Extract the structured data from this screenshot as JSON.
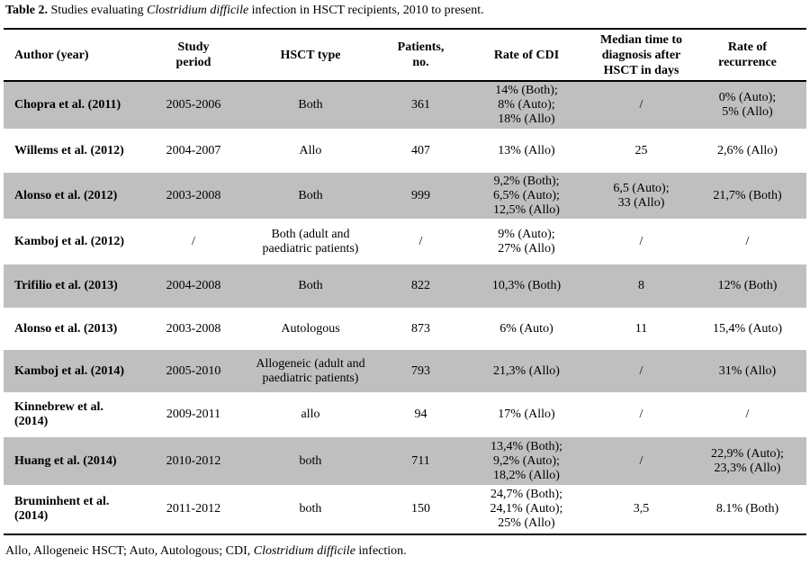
{
  "caption": {
    "label": "Table 2.",
    "text_before": "Studies evaluating",
    "italic": "Clostridium difficile",
    "text_after": "infection in HSCT recipients, 2010 to present."
  },
  "table": {
    "header": [
      [
        "Author (year)"
      ],
      [
        "Study",
        "period"
      ],
      [
        "HSCT type"
      ],
      [
        "Patients,",
        "no."
      ],
      [
        "Rate of CDI"
      ],
      [
        "Median time to",
        "diagnosis after",
        "HSCT in days"
      ],
      [
        "Rate of",
        "recurrence"
      ]
    ],
    "rows": [
      [
        "Chopra et al. (2011)",
        "2005-2006",
        "Both",
        "361",
        [
          "14% (Both);",
          "8% (Auto);",
          "18% (Allo)"
        ],
        "/",
        [
          "0% (Auto);",
          "5% (Allo)"
        ]
      ],
      [
        "Willems et al. (2012)",
        "2004-2007",
        "Allo",
        "407",
        "13% (Allo)",
        "25",
        "2,6% (Allo)"
      ],
      [
        "Alonso et al. (2012)",
        "2003-2008",
        "Both",
        "999",
        [
          "9,2% (Both);",
          "6,5% (Auto);",
          "12,5% (Allo)"
        ],
        [
          "6,5 (Auto);",
          "33 (Allo)"
        ],
        "21,7% (Both)"
      ],
      [
        "Kamboj et al. (2012)",
        "/",
        [
          "Both (adult and",
          "paediatric patients)"
        ],
        "/",
        [
          "9% (Auto);",
          "27% (Allo)"
        ],
        "/",
        "/"
      ],
      [
        "Trifilio et al. (2013)",
        "2004-2008",
        "Both",
        "822",
        "10,3% (Both)",
        "8",
        "12% (Both)"
      ],
      [
        "Alonso et al. (2013)",
        "2003-2008",
        "Autologous",
        "873",
        "6% (Auto)",
        "11",
        "15,4% (Auto)"
      ],
      [
        "Kamboj et al. (2014)",
        "2005-2010",
        [
          "Allogeneic (adult and",
          "paediatric patients)"
        ],
        "793",
        "21,3% (Allo)",
        "/",
        "31% (Allo)"
      ],
      [
        [
          "Kinnebrew et al.",
          "(2014)"
        ],
        "2009-2011",
        "allo",
        "94",
        "17% (Allo)",
        "/",
        "/"
      ],
      [
        "Huang et al. (2014)",
        "2010-2012",
        "both",
        "711",
        [
          "13,4% (Both);",
          "9,2% (Auto);",
          "18,2% (Allo)"
        ],
        "/",
        [
          "22,9% (Auto);",
          "23,3% (Allo)"
        ]
      ],
      [
        [
          "Bruminhent et al.",
          "(2014)"
        ],
        "2011-2012",
        "both",
        "150",
        [
          "24,7% (Both);",
          "24,1% (Auto);",
          "25% (Allo)"
        ],
        "3,5",
        "8.1% (Both)"
      ]
    ]
  },
  "footnote": {
    "text_before": "Allo, Allogeneic HSCT; Auto, Autologous; CDI,",
    "italic": "Clostridium difficile",
    "text_after": "infection."
  }
}
